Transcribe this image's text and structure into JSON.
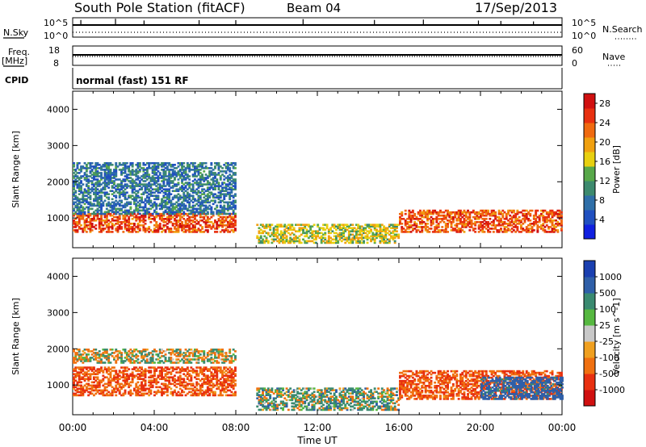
{
  "header": {
    "station": "South Pole Station (fitACF)",
    "beam": "Beam 04",
    "date": "17/Sep/2013"
  },
  "top_panels": {
    "nsky_label": "N.Sky",
    "nsearch_label": "N.Search",
    "freq_label": "Freq.",
    "freq_unit": "[MHz]",
    "nave_label": "Nave",
    "cpid_label": "CPID",
    "cpid_text": "normal (fast) 151 RF",
    "noise_ticks_left": [
      "10^5",
      "10^0"
    ],
    "noise_ticks_right": [
      "10^5",
      "10^0"
    ],
    "freq_ticks": [
      "18",
      "8"
    ],
    "nave_ticks": [
      "60",
      "0"
    ],
    "freq_value_mhz": 12,
    "nave_value": 28
  },
  "chart_data": [
    {
      "type": "heatmap",
      "title": "",
      "ylabel": "Slant Range [km]",
      "xlabel": "",
      "ylim": [
        180,
        4500
      ],
      "yticks": [
        1000,
        2000,
        3000,
        4000
      ],
      "ytick_labels": [
        "1000",
        "2000",
        "3000",
        "4000"
      ],
      "colorbar_label": "Power [dB]",
      "colorbar_ticks": [
        "4",
        "8",
        "12",
        "16",
        "20",
        "24",
        "28"
      ],
      "colorbar_range": [
        0,
        30
      ],
      "colorbar_colors": [
        "#1020e0",
        "#2050c0",
        "#2f6fa8",
        "#3d8a6e",
        "#58a84a",
        "#e8d010",
        "#f0a010",
        "#f06a10",
        "#e83010",
        "#d01010"
      ],
      "regions": [
        {
          "t0": 0.0,
          "t1": 8.0,
          "r0": 600,
          "r1": 1100,
          "value": 24
        },
        {
          "t0": 0.0,
          "t1": 8.0,
          "r0": 1100,
          "r1": 2500,
          "value": 8
        },
        {
          "t0": 9.0,
          "t1": 16.0,
          "r0": 300,
          "r1": 800,
          "value": 16
        },
        {
          "t0": 16.0,
          "t1": 24.0,
          "r0": 600,
          "r1": 1200,
          "value": 24
        }
      ]
    },
    {
      "type": "heatmap",
      "title": "",
      "ylabel": "Slant Range [km]",
      "xlabel": "Time UT",
      "ylim": [
        180,
        4500
      ],
      "yticks": [
        1000,
        2000,
        3000,
        4000
      ],
      "ytick_labels": [
        "1000",
        "2000",
        "3000",
        "4000"
      ],
      "xticks": [
        "00:00",
        "04:00",
        "08:00",
        "12:00",
        "16:00",
        "20:00",
        "00:00"
      ],
      "colorbar_label": "Velocity [m s^-1]",
      "colorbar_ticks": [
        "1000",
        "500",
        "100",
        "25",
        "-25",
        "-100",
        "-500",
        "-1000"
      ],
      "colorbar_colors": [
        "#1a3fb0",
        "#2f5fa8",
        "#3a8a70",
        "#56b840",
        "#c8c8c8",
        "#f0a020",
        "#f07010",
        "#e83010",
        "#d01010"
      ],
      "regions": [
        {
          "t0": 0.0,
          "t1": 8.0,
          "r0": 700,
          "r1": 1500,
          "value": -300
        },
        {
          "t0": 0.0,
          "t1": 8.0,
          "r0": 1600,
          "r1": 2000,
          "value": 0
        },
        {
          "t0": 9.0,
          "t1": 16.0,
          "r0": 300,
          "r1": 900,
          "value": 100
        },
        {
          "t0": 16.0,
          "t1": 24.0,
          "r0": 600,
          "r1": 1400,
          "value": -300
        },
        {
          "t0": 20.0,
          "t1": 24.0,
          "r0": 600,
          "r1": 1200,
          "value": 500
        }
      ]
    }
  ]
}
